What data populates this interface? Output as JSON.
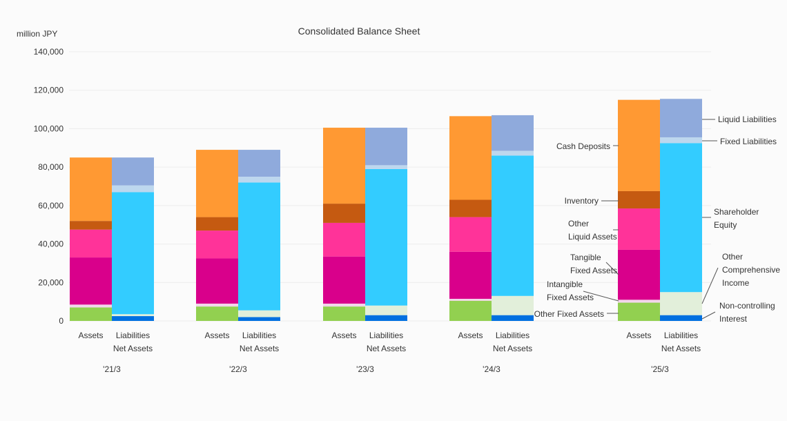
{
  "chart_data": {
    "type": "bar",
    "stacked": true,
    "title": "Consolidated Balance Sheet",
    "unit_label": "million JPY",
    "ylim": [
      0,
      140000
    ],
    "y_ticks": [
      "0",
      "20,000",
      "40,000",
      "60,000",
      "80,000",
      "100,000",
      "120,000",
      "140,000"
    ],
    "y_tick_values": [
      0,
      20000,
      40000,
      60000,
      80000,
      100000,
      120000,
      140000
    ],
    "grid": true,
    "periods": [
      "'21/3",
      "'22/3",
      "'23/3",
      "'24/3",
      "'25/3"
    ],
    "bar_labels": {
      "assets": "Assets",
      "liabilities_line1": "Liabilities",
      "liabilities_line2": "Net Assets"
    },
    "assets_series": [
      {
        "name": "Other Fixed Assets",
        "color": "#92d050",
        "values": [
          7000,
          7500,
          7500,
          10500,
          9500
        ]
      },
      {
        "name": "Intangible Fixed Assets",
        "color": "#f2d6ea",
        "values": [
          1500,
          1500,
          1500,
          1000,
          1500
        ]
      },
      {
        "name": "Tangible Fixed Assets",
        "color": "#d9008b",
        "values": [
          24500,
          23500,
          24500,
          24500,
          26000
        ]
      },
      {
        "name": "Other Liquid Assets",
        "color": "#ff3399",
        "values": [
          14500,
          14500,
          17500,
          18000,
          21500
        ]
      },
      {
        "name": "Inventory",
        "color": "#c55a11",
        "values": [
          4500,
          7000,
          10000,
          9000,
          9000
        ]
      },
      {
        "name": "Cash Deposits",
        "color": "#ff9933",
        "values": [
          33000,
          35000,
          39500,
          43500,
          47500
        ]
      }
    ],
    "liabilities_series": [
      {
        "name": "Non-controlling Interest",
        "color": "#0070e0",
        "values": [
          2500,
          2000,
          3000,
          3000,
          3000
        ]
      },
      {
        "name": "Other Comprehensive Income",
        "color": "#e2efda",
        "values": [
          1000,
          3500,
          5000,
          10000,
          12000
        ]
      },
      {
        "name": "Shareholder Equity",
        "color": "#33ccff",
        "values": [
          63500,
          66500,
          71000,
          73000,
          77500
        ]
      },
      {
        "name": "Fixed Liabilities",
        "color": "#bdd7ee",
        "values": [
          3500,
          3000,
          2000,
          2500,
          3000
        ]
      },
      {
        "name": "Liquid Liabilities",
        "color": "#8faadc",
        "values": [
          14500,
          14000,
          19500,
          18500,
          20000
        ]
      }
    ],
    "annotations": [
      {
        "lines": [
          "Liquid Liabilities"
        ]
      },
      {
        "lines": [
          "Fixed Liabilities"
        ]
      },
      {
        "lines": [
          "Cash Deposits"
        ]
      },
      {
        "lines": [
          "Inventory"
        ]
      },
      {
        "lines": [
          "Shareholder",
          "Equity"
        ]
      },
      {
        "lines": [
          "Other",
          "Liquid Assets"
        ]
      },
      {
        "lines": [
          "Tangible",
          "Fixed Assets"
        ]
      },
      {
        "lines": [
          "Other",
          "Comprehensive",
          "Income"
        ]
      },
      {
        "lines": [
          "Intangible",
          "Fixed Assets"
        ]
      },
      {
        "lines": [
          "Non-controlling",
          "Interest"
        ]
      },
      {
        "lines": [
          "Other Fixed Assets"
        ]
      }
    ]
  }
}
